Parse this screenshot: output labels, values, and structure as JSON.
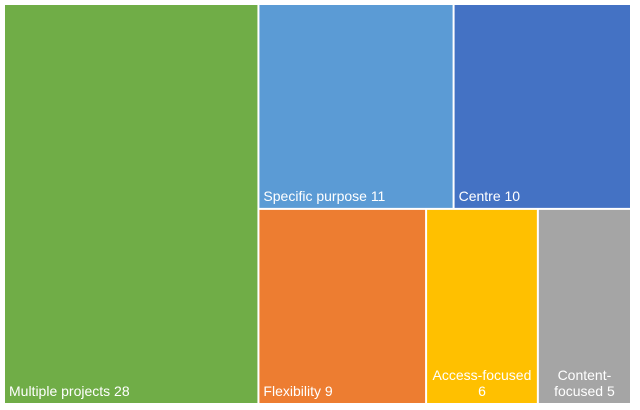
{
  "chart_data": {
    "type": "treemap",
    "title": "",
    "items": [
      {
        "label": "Multiple projects",
        "value": 28,
        "color": "#70AD47",
        "label_lines": [
          "Multiple projects 28"
        ],
        "align": "start"
      },
      {
        "label": "Specific purpose",
        "value": 11,
        "color": "#5B9BD5",
        "label_lines": [
          "Specific purpose 11"
        ],
        "align": "start"
      },
      {
        "label": "Centre",
        "value": 10,
        "color": "#4472C4",
        "label_lines": [
          "Centre 10"
        ],
        "align": "start"
      },
      {
        "label": "Flexibility",
        "value": 9,
        "color": "#ED7D31",
        "label_lines": [
          "Flexibility 9"
        ],
        "align": "start"
      },
      {
        "label": "Access-focused",
        "value": 6,
        "color": "#FFC000",
        "label_lines": [
          "Access-focused",
          "6"
        ],
        "align": "middle"
      },
      {
        "label": "Content-focused",
        "value": 5,
        "color": "#A5A5A5",
        "label_lines": [
          "Content-",
          "focused 5"
        ],
        "align": "middle"
      }
    ]
  }
}
